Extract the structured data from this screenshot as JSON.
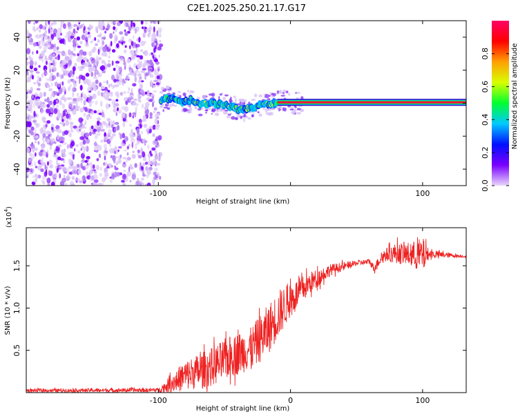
{
  "title": "C2E1.2025.250.21.17.G17",
  "chart_data": [
    {
      "type": "heatmap",
      "id": "spectrogram",
      "xlabel": "Height of straight line (km)",
      "ylabel": "Frequency (Hz)",
      "xlim": [
        -200,
        133
      ],
      "ylim": [
        -50,
        50
      ],
      "xticks": [
        -100,
        0,
        100
      ],
      "xtick_labels": [
        "-100",
        "",
        "100"
      ],
      "yticks": [
        -40,
        -20,
        0,
        20,
        40
      ],
      "ytick_labels": [
        "-40",
        "-20",
        "0",
        "20",
        "40"
      ],
      "colorbar": {
        "label": "Normalized spectral amplitude",
        "range": [
          0,
          1
        ],
        "ticks": [
          0.0,
          0.2,
          0.4,
          0.6,
          0.8
        ],
        "tick_labels": [
          "0.0",
          "0.2",
          "0.4",
          "0.6",
          "0.8"
        ],
        "colormap": [
          "#e9d7fb",
          "#7a00ff",
          "#0010ff",
          "#00c8ff",
          "#00ff30",
          "#d8ff00",
          "#ffa000",
          "#ff0000",
          "#ff0066"
        ]
      },
      "noise_region_x": [
        -200,
        -98
      ],
      "signal_track": [
        {
          "x": -98,
          "y": 2
        },
        {
          "x": -90,
          "y": 3
        },
        {
          "x": -82,
          "y": 0
        },
        {
          "x": -75,
          "y": 2
        },
        {
          "x": -68,
          "y": -1
        },
        {
          "x": -60,
          "y": 0
        },
        {
          "x": -52,
          "y": -1
        },
        {
          "x": -45,
          "y": -2
        },
        {
          "x": -38,
          "y": -4
        },
        {
          "x": -30,
          "y": -3
        },
        {
          "x": -22,
          "y": -1
        },
        {
          "x": -12,
          "y": 0
        },
        {
          "x": 0,
          "y": 0.5
        },
        {
          "x": 20,
          "y": 0.5
        },
        {
          "x": 60,
          "y": 0.5
        },
        {
          "x": 100,
          "y": 0.5
        },
        {
          "x": 133,
          "y": 0.5
        }
      ],
      "stable_from_x": -10
    },
    {
      "type": "line",
      "id": "snr",
      "xlabel": "Height of straight line (km)",
      "ylabel": "SNR (10 * v/v)",
      "multiplier_label": "(x10",
      "multiplier_exp": "4",
      "multiplier_close": ")",
      "xlim": [
        -200,
        133
      ],
      "ylim": [
        0,
        19500
      ],
      "xticks": [
        -100,
        0,
        100
      ],
      "xtick_labels": [
        "-100",
        "0",
        "100"
      ],
      "yticks": [
        5000,
        10000,
        15000
      ],
      "ytick_labels": [
        "0.5",
        "1.0",
        "1.5"
      ],
      "series": [
        {
          "name": "SNR",
          "color": "#ee2222",
          "envelope": [
            {
              "x": -200,
              "mean": 250,
              "amp": 200
            },
            {
              "x": -100,
              "mean": 300,
              "amp": 250
            },
            {
              "x": -92,
              "mean": 900,
              "amp": 900
            },
            {
              "x": -80,
              "mean": 2000,
              "amp": 1800
            },
            {
              "x": -60,
              "mean": 3000,
              "amp": 2300
            },
            {
              "x": -45,
              "mean": 4300,
              "amp": 2500
            },
            {
              "x": -30,
              "mean": 5200,
              "amp": 2500
            },
            {
              "x": -18,
              "mean": 7200,
              "amp": 3000
            },
            {
              "x": -8,
              "mean": 9500,
              "amp": 2800
            },
            {
              "x": 0,
              "mean": 11000,
              "amp": 2000
            },
            {
              "x": 15,
              "mean": 13000,
              "amp": 1300
            },
            {
              "x": 30,
              "mean": 14500,
              "amp": 700
            },
            {
              "x": 50,
              "mean": 15300,
              "amp": 300
            },
            {
              "x": 60,
              "mean": 15500,
              "amp": 350
            },
            {
              "x": 63,
              "mean": 14700,
              "amp": 500
            },
            {
              "x": 70,
              "mean": 16200,
              "amp": 700
            },
            {
              "x": 80,
              "mean": 16500,
              "amp": 1200
            },
            {
              "x": 92,
              "mean": 16300,
              "amp": 1500
            },
            {
              "x": 100,
              "mean": 16200,
              "amp": 2200
            },
            {
              "x": 105,
              "mean": 16400,
              "amp": 500
            },
            {
              "x": 133,
              "mean": 16100,
              "amp": 120
            }
          ]
        }
      ]
    }
  ]
}
